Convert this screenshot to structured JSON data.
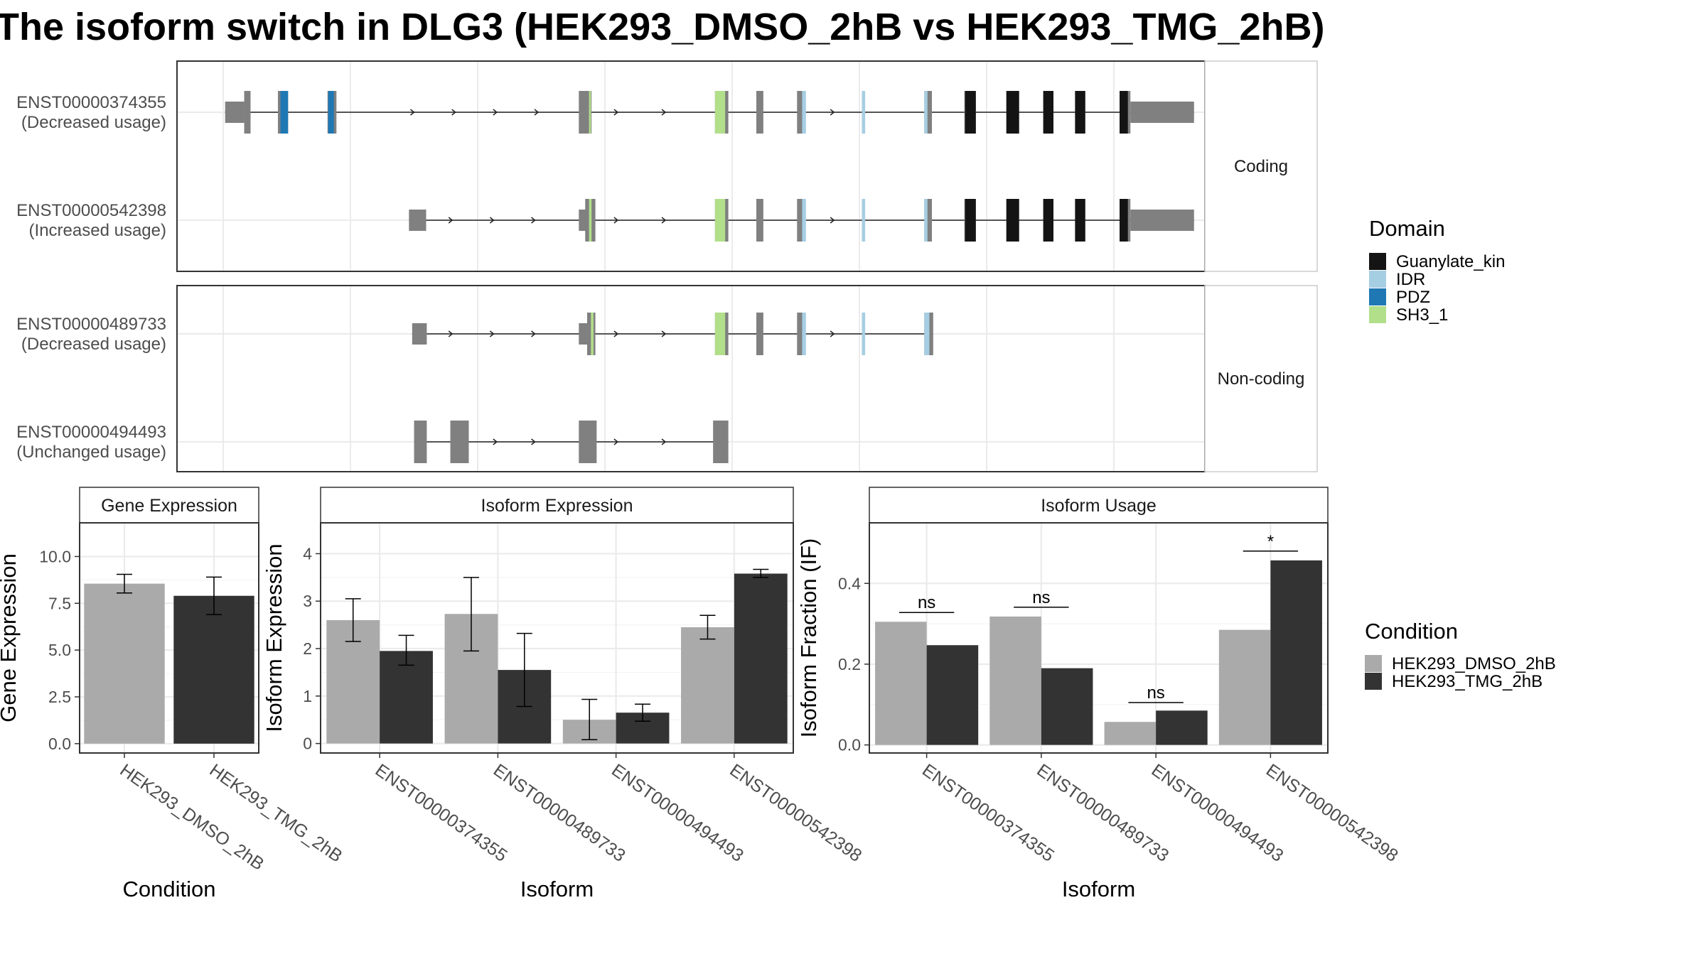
{
  "title": "The isoform switch in DLG3 (HEK293_DMSO_2hB vs HEK293_TMG_2hB)",
  "colors": {
    "exon": "#808080",
    "domain": {
      "Guanylate_kin": "#141414",
      "IDR": "#a6cee3",
      "PDZ": "#1f78b4",
      "SH3_1": "#b2df8a"
    },
    "condition": {
      "HEK293_DMSO_2hB": "#aaaaaa",
      "HEK293_TMG_2hB": "#333333"
    }
  },
  "structure": {
    "panels": [
      {
        "label": "Coding",
        "transcripts": [
          {
            "id": "ENST00000374355",
            "usage": "(Decreased usage)",
            "exons": [
              [
                0.3,
                3.3,
                "n"
              ],
              [
                3.3,
                4.3,
                "w"
              ],
              [
                8.6,
                10.2,
                "w"
              ],
              [
                16.4,
                17.8,
                "w"
              ],
              [
                55.9,
                57.9,
                "w"
              ],
              [
                77.3,
                79.4,
                "w"
              ],
              [
                83.8,
                84.9,
                "w"
              ],
              [
                90.2,
                91.4,
                "w"
              ],
              [
                100.4,
                100.9,
                "w"
              ],
              [
                110.2,
                111.4,
                "w"
              ],
              [
                116.5,
                118.3,
                "w"
              ],
              [
                123.1,
                125.1,
                "w"
              ],
              [
                128.9,
                130.5,
                "w"
              ],
              [
                133.9,
                135.5,
                "w"
              ],
              [
                140.9,
                142.6,
                "w"
              ],
              [
                142.6,
                152.6,
                "n"
              ]
            ],
            "domains": [
              [
                9.0,
                10.2,
                "PDZ"
              ],
              [
                16.5,
                17.4,
                "PDZ"
              ],
              [
                57.5,
                57.8,
                "SH3_1"
              ],
              [
                77.3,
                78.9,
                "SH3_1"
              ],
              [
                91.0,
                91.6,
                "IDR"
              ],
              [
                100.4,
                100.9,
                "IDR"
              ],
              [
                110.2,
                110.7,
                "IDR"
              ],
              [
                116.6,
                118.3,
                "Guanylate_kin"
              ],
              [
                123.1,
                125.1,
                "Guanylate_kin"
              ],
              [
                128.9,
                130.5,
                "Guanylate_kin"
              ],
              [
                133.9,
                135.5,
                "Guanylate_kin"
              ],
              [
                140.9,
                142.2,
                "Guanylate_kin"
              ]
            ],
            "arrows": [
              30,
              36.5,
              43,
              49.5,
              62,
              69.5,
              96
            ]
          },
          {
            "id": "ENST00000542398",
            "usage": "(Increased usage)",
            "exons": [
              [
                29.2,
                31.9,
                "n"
              ],
              [
                55.9,
                57.2,
                "n"
              ],
              [
                56.9,
                58.5,
                "w"
              ],
              [
                77.3,
                79.4,
                "w"
              ],
              [
                83.8,
                84.9,
                "w"
              ],
              [
                90.2,
                91.4,
                "w"
              ],
              [
                100.4,
                100.9,
                "w"
              ],
              [
                110.2,
                111.4,
                "w"
              ],
              [
                116.5,
                118.3,
                "w"
              ],
              [
                123.1,
                125.1,
                "w"
              ],
              [
                128.9,
                130.5,
                "w"
              ],
              [
                133.9,
                135.5,
                "w"
              ],
              [
                140.9,
                142.6,
                "w"
              ],
              [
                142.6,
                152.6,
                "n"
              ]
            ],
            "domains": [
              [
                57.5,
                57.9,
                "SH3_1"
              ],
              [
                77.3,
                78.9,
                "SH3_1"
              ],
              [
                91.0,
                91.6,
                "IDR"
              ],
              [
                100.4,
                100.9,
                "IDR"
              ],
              [
                110.2,
                110.7,
                "IDR"
              ],
              [
                116.6,
                118.3,
                "Guanylate_kin"
              ],
              [
                123.1,
                125.1,
                "Guanylate_kin"
              ],
              [
                128.9,
                130.5,
                "Guanylate_kin"
              ],
              [
                133.9,
                135.5,
                "Guanylate_kin"
              ],
              [
                140.9,
                142.2,
                "Guanylate_kin"
              ]
            ],
            "arrows": [
              36,
              42.5,
              49,
              62,
              69.5,
              96
            ]
          }
        ]
      },
      {
        "label": "Non-coding",
        "transcripts": [
          {
            "id": "ENST00000489733",
            "usage": "(Decreased usage)",
            "exons": [
              [
                29.7,
                32.0,
                "n"
              ],
              [
                55.9,
                57.4,
                "n"
              ],
              [
                57.2,
                58.5,
                "w"
              ],
              [
                77.3,
                79.4,
                "w"
              ],
              [
                83.8,
                84.9,
                "w"
              ],
              [
                90.2,
                91.4,
                "w"
              ],
              [
                100.4,
                100.9,
                "w"
              ],
              [
                110.2,
                111.6,
                "w"
              ]
            ],
            "domains": [
              [
                57.8,
                58.2,
                "SH3_1"
              ],
              [
                77.3,
                78.9,
                "SH3_1"
              ],
              [
                91.0,
                91.6,
                "IDR"
              ],
              [
                100.4,
                100.9,
                "IDR"
              ],
              [
                110.2,
                111.0,
                "IDR"
              ]
            ],
            "arrows": [
              36,
              42.5,
              49,
              62,
              69.5,
              96
            ]
          },
          {
            "id": "ENST00000494493",
            "usage": "(Unchanged usage)",
            "exons": [
              [
                30.0,
                32.0,
                "w"
              ],
              [
                35.7,
                38.6,
                "w"
              ],
              [
                55.9,
                58.7,
                "w"
              ],
              [
                77.0,
                79.4,
                "w"
              ]
            ],
            "domains": [],
            "arrows": [
              43,
              49,
              62,
              69.5
            ]
          }
        ]
      }
    ]
  },
  "legend_domain": {
    "title": "Domain",
    "items": [
      "Guanylate_kin",
      "IDR",
      "PDZ",
      "SH3_1"
    ]
  },
  "legend_condition": {
    "title": "Condition",
    "items": [
      "HEK293_DMSO_2hB",
      "HEK293_TMG_2hB"
    ]
  },
  "chart_data": [
    {
      "type": "bar",
      "panel": "Gene Expression",
      "xlabel": "Condition",
      "ylabel": "Gene Expression",
      "categories": [
        "HEK293_DMSO_2hB",
        "HEK293_TMG_2hB"
      ],
      "values": [
        8.55,
        7.9
      ],
      "errors": [
        [
          8.05,
          9.05
        ],
        [
          6.9,
          8.9
        ]
      ],
      "ylim": [
        -0.5,
        11.8
      ],
      "yticks": [
        "0.0",
        "2.5",
        "5.0",
        "7.5",
        "10.0"
      ]
    },
    {
      "type": "bar",
      "panel": "Isoform Expression",
      "xlabel": "Isoform",
      "ylabel": "Isoform Expression",
      "categories": [
        "ENST00000374355",
        "ENST00000489733",
        "ENST00000494493",
        "ENST00000542398"
      ],
      "series": [
        {
          "name": "HEK293_DMSO_2hB",
          "values": [
            2.6,
            2.73,
            0.5,
            2.45
          ],
          "errors": [
            [
              2.15,
              3.05
            ],
            [
              1.95,
              3.5
            ],
            [
              0.08,
              0.93
            ],
            [
              2.2,
              2.7
            ]
          ]
        },
        {
          "name": "HEK293_TMG_2hB",
          "values": [
            1.95,
            1.55,
            0.65,
            3.58
          ],
          "errors": [
            [
              1.65,
              2.28
            ],
            [
              0.78,
              2.32
            ],
            [
              0.47,
              0.83
            ],
            [
              3.5,
              3.67
            ]
          ]
        }
      ],
      "ylim": [
        -0.2,
        4.65
      ],
      "yticks": [
        "0",
        "1",
        "2",
        "3",
        "4"
      ]
    },
    {
      "type": "bar",
      "panel": "Isoform Usage",
      "xlabel": "Isoform",
      "ylabel": "Isoform Fraction (IF)",
      "categories": [
        "ENST00000374355",
        "ENST00000489733",
        "ENST00000494493",
        "ENST00000542398"
      ],
      "series": [
        {
          "name": "HEK293_DMSO_2hB",
          "values": [
            0.305,
            0.318,
            0.057,
            0.285
          ]
        },
        {
          "name": "HEK293_TMG_2hB",
          "values": [
            0.247,
            0.19,
            0.085,
            0.457
          ]
        }
      ],
      "significance": [
        {
          "label": "ns",
          "y": 0.328
        },
        {
          "label": "ns",
          "y": 0.341
        },
        {
          "label": "ns",
          "y": 0.105
        },
        {
          "label": "*",
          "y": 0.48
        }
      ],
      "ylim": [
        -0.02,
        0.55
      ],
      "yticks": [
        "0.0",
        "0.2",
        "0.4"
      ]
    }
  ]
}
